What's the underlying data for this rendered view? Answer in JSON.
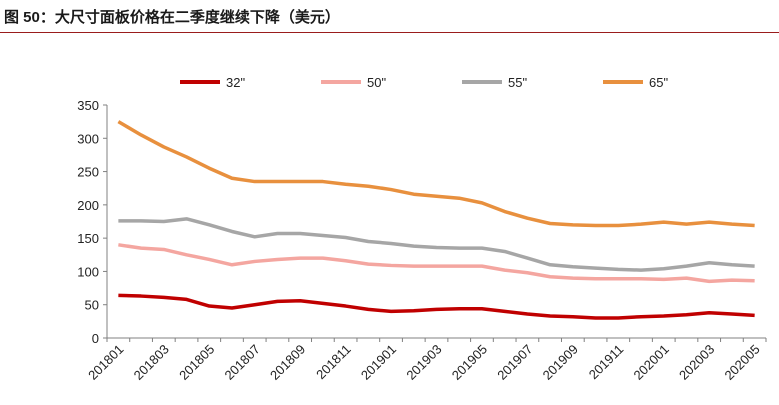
{
  "title": "图 50：大尺寸面板价格在二季度继续下降（美元）",
  "chart_data": {
    "type": "line",
    "title": "图 50：大尺寸面板价格在二季度继续下降（美元）",
    "categories": [
      "201801",
      "201802",
      "201803",
      "201804",
      "201805",
      "201806",
      "201807",
      "201808",
      "201809",
      "201810",
      "201811",
      "201812",
      "201901",
      "201902",
      "201903",
      "201904",
      "201905",
      "201906",
      "201907",
      "201908",
      "201909",
      "201910",
      "201911",
      "201912",
      "202001",
      "202002",
      "202003",
      "202004",
      "202005"
    ],
    "tick_labels": [
      "201801",
      "201803",
      "201805",
      "201807",
      "201809",
      "201811",
      "201901",
      "201903",
      "201905",
      "201907",
      "201909",
      "201911",
      "202001",
      "202003",
      "202005"
    ],
    "ylim": [
      0,
      350
    ],
    "yticks": [
      0,
      50,
      100,
      150,
      200,
      250,
      300,
      350
    ],
    "grid": false,
    "legend": "top",
    "series": [
      {
        "name": "32\"",
        "color": "#c00000",
        "values": [
          64,
          63,
          61,
          58,
          48,
          45,
          50,
          55,
          56,
          52,
          48,
          43,
          40,
          41,
          43,
          44,
          44,
          40,
          36,
          33,
          32,
          30,
          30,
          32,
          33,
          35,
          38,
          36,
          34
        ]
      },
      {
        "name": "50\"",
        "color": "#f4a6a0",
        "values": [
          140,
          135,
          133,
          125,
          118,
          110,
          115,
          118,
          120,
          120,
          116,
          111,
          109,
          108,
          108,
          108,
          108,
          102,
          98,
          92,
          90,
          89,
          89,
          89,
          88,
          90,
          85,
          87,
          86
        ]
      },
      {
        "name": "55\"",
        "color": "#a6a6a6",
        "values": [
          176,
          176,
          175,
          179,
          170,
          160,
          152,
          157,
          157,
          154,
          151,
          145,
          142,
          138,
          136,
          135,
          135,
          130,
          120,
          110,
          107,
          105,
          103,
          102,
          104,
          108,
          113,
          110,
          108
        ]
      },
      {
        "name": "65\"",
        "color": "#e8903e",
        "values": [
          325,
          305,
          287,
          272,
          255,
          240,
          235,
          235,
          235,
          235,
          231,
          228,
          223,
          216,
          213,
          210,
          203,
          190,
          180,
          172,
          170,
          169,
          169,
          171,
          174,
          171,
          174,
          171,
          169
        ]
      }
    ]
  }
}
